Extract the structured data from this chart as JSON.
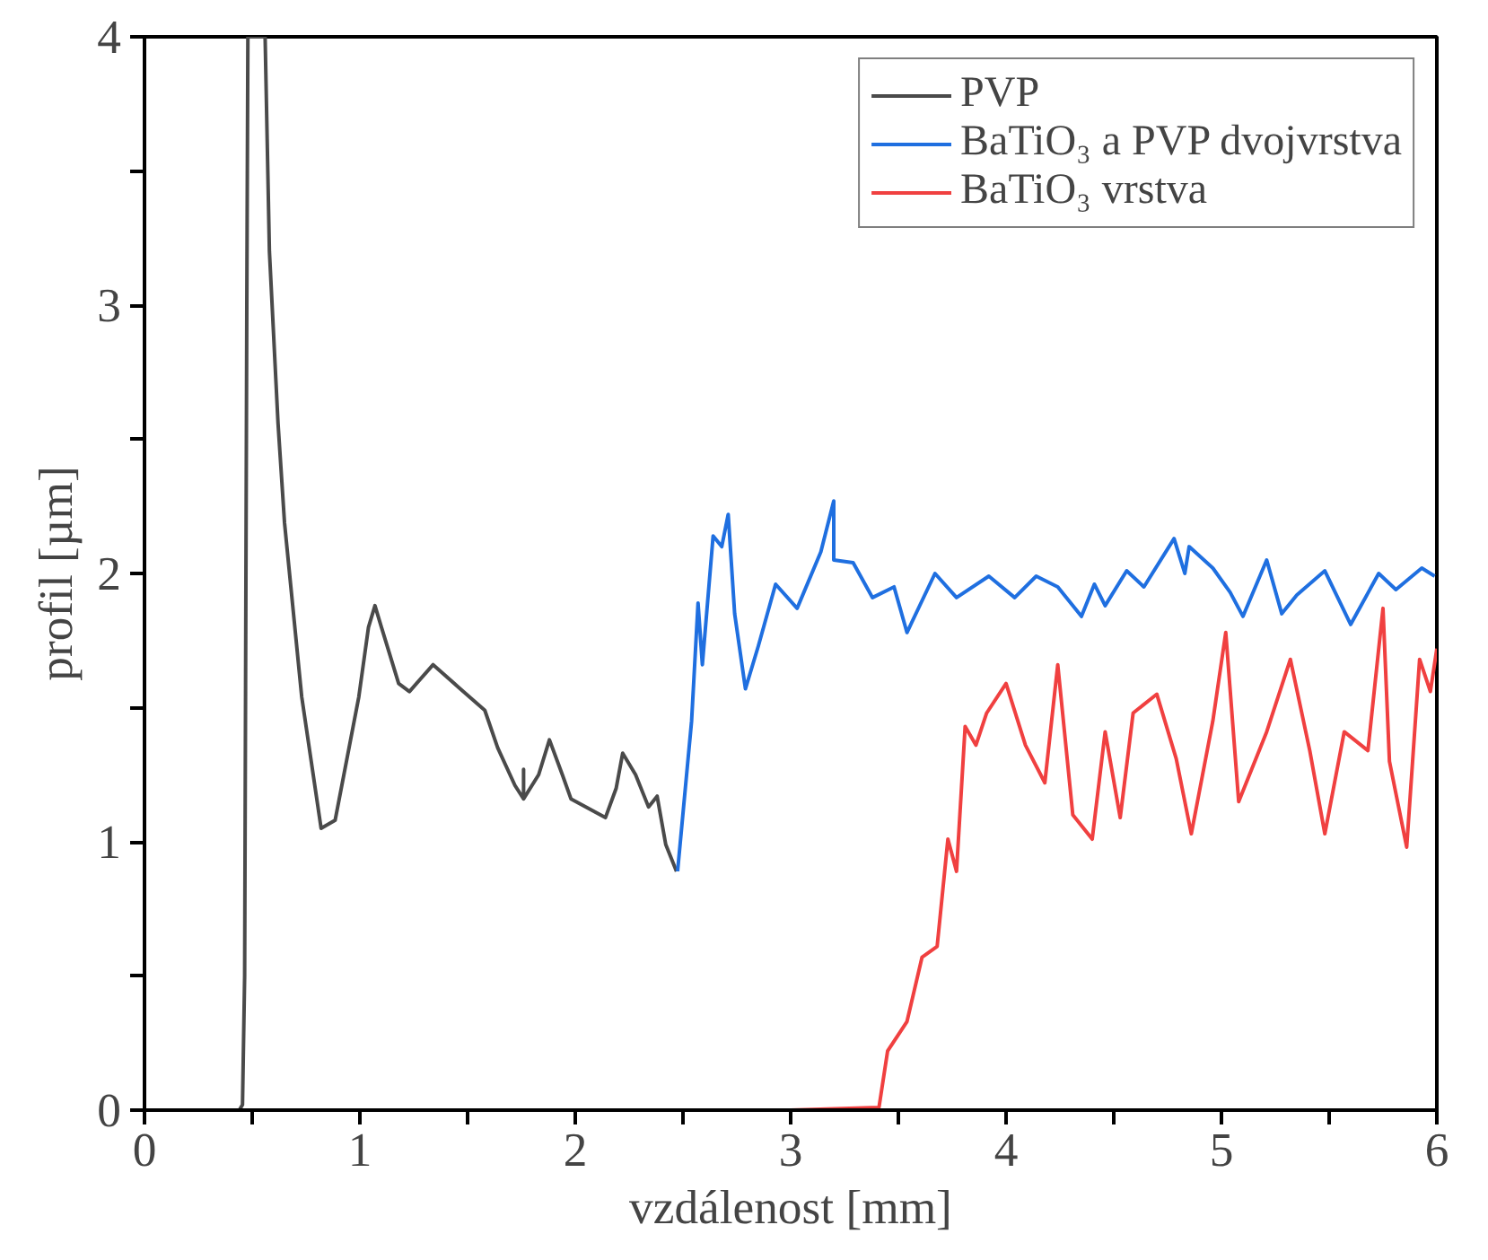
{
  "chart_data": {
    "type": "line",
    "xlabel": "vzdálenost [mm]",
    "ylabel": "profil [µm]",
    "xlim": [
      0,
      6
    ],
    "ylim": [
      0,
      4
    ],
    "xticks": [
      0,
      {
        "value": 0.5,
        "label": null
      },
      1,
      {
        "value": 1.5,
        "label": null
      },
      2,
      {
        "value": 2.5,
        "label": null
      },
      3,
      {
        "value": 3.5,
        "label": null
      },
      4,
      {
        "value": 4.5,
        "label": null
      },
      5,
      {
        "value": 5.5,
        "label": null
      },
      6
    ],
    "yticks": [
      0,
      {
        "value": 0.5,
        "label": null
      },
      1,
      {
        "value": 1.5,
        "label": null
      },
      2,
      {
        "value": 2.5,
        "label": null
      },
      3,
      {
        "value": 3.5,
        "label": null
      },
      4
    ],
    "grid": false,
    "legend": "top right",
    "line_style": "solid",
    "series": [
      {
        "name": "PVP",
        "color": "#4a4a4a",
        "x": [
          0,
          0.2,
          0.44,
          0.455,
          0.465,
          0.475,
          0.48,
          0.56,
          0.58,
          0.62,
          0.65,
          0.73,
          0.82,
          0.885,
          0.995,
          1.04,
          1.07,
          1.1,
          1.18,
          1.23,
          1.34,
          1.48,
          1.58,
          1.64,
          1.72,
          1.76,
          1.76,
          1.76,
          1.83,
          1.88,
          1.94,
          1.98,
          2.14,
          2.19,
          2.22,
          2.28,
          2.34,
          2.38,
          2.42,
          2.47
        ],
        "values": [
          0,
          0,
          0,
          0.02,
          0.5,
          3.0,
          4.0,
          4.0,
          3.2,
          2.56,
          2.19,
          1.54,
          1.05,
          1.08,
          1.54,
          1.8,
          1.88,
          1.8,
          1.59,
          1.56,
          1.66,
          1.56,
          1.49,
          1.35,
          1.21,
          1.16,
          1.27,
          1.16,
          1.25,
          1.38,
          1.25,
          1.16,
          1.09,
          1.2,
          1.33,
          1.25,
          1.13,
          1.17,
          0.99,
          0.89
        ]
      },
      {
        "name": "BaTiO₃ a PVP dvojvrstva",
        "color": "#1f6fe0",
        "x": [
          2.475,
          2.54,
          2.57,
          2.59,
          2.64,
          2.68,
          2.71,
          2.74,
          2.79,
          2.85,
          2.93,
          3.03,
          3.14,
          3.2,
          3.2,
          3.29,
          3.38,
          3.48,
          3.54,
          3.67,
          3.77,
          3.92,
          4.04,
          4.14,
          4.24,
          4.35,
          4.41,
          4.46,
          4.56,
          4.64,
          4.78,
          4.83,
          4.85,
          4.96,
          5.04,
          5.1,
          5.21,
          5.28,
          5.35,
          5.48,
          5.6,
          5.73,
          5.81,
          5.93,
          5.99
        ],
        "values": [
          0.89,
          1.45,
          1.89,
          1.66,
          2.14,
          2.1,
          2.22,
          1.85,
          1.57,
          1.73,
          1.96,
          1.87,
          2.08,
          2.27,
          2.05,
          2.04,
          1.91,
          1.95,
          1.78,
          2.0,
          1.91,
          1.99,
          1.91,
          1.99,
          1.95,
          1.84,
          1.96,
          1.88,
          2.01,
          1.95,
          2.13,
          2.0,
          2.1,
          2.02,
          1.93,
          1.84,
          2.05,
          1.85,
          1.92,
          2.01,
          1.81,
          2.0,
          1.94,
          2.02,
          1.99
        ]
      },
      {
        "name": "BaTiO₃ vrstva",
        "color": "#f04040",
        "x": [
          3.0,
          3.41,
          3.45,
          3.54,
          3.61,
          3.68,
          3.73,
          3.77,
          3.81,
          3.86,
          3.91,
          4.0,
          4.09,
          4.18,
          4.24,
          4.31,
          4.4,
          4.46,
          4.53,
          4.59,
          4.7,
          4.79,
          4.86,
          4.96,
          5.02,
          5.08,
          5.21,
          5.32,
          5.41,
          5.48,
          5.57,
          5.68,
          5.75,
          5.78,
          5.86,
          5.92,
          5.97,
          6.0
        ],
        "values": [
          0,
          0.01,
          0.22,
          0.33,
          0.57,
          0.61,
          1.01,
          0.89,
          1.43,
          1.36,
          1.48,
          1.59,
          1.36,
          1.22,
          1.66,
          1.1,
          1.01,
          1.41,
          1.09,
          1.48,
          1.55,
          1.31,
          1.03,
          1.45,
          1.78,
          1.15,
          1.41,
          1.68,
          1.34,
          1.03,
          1.41,
          1.34,
          1.87,
          1.3,
          0.98,
          1.68,
          1.56,
          1.72
        ]
      }
    ]
  }
}
